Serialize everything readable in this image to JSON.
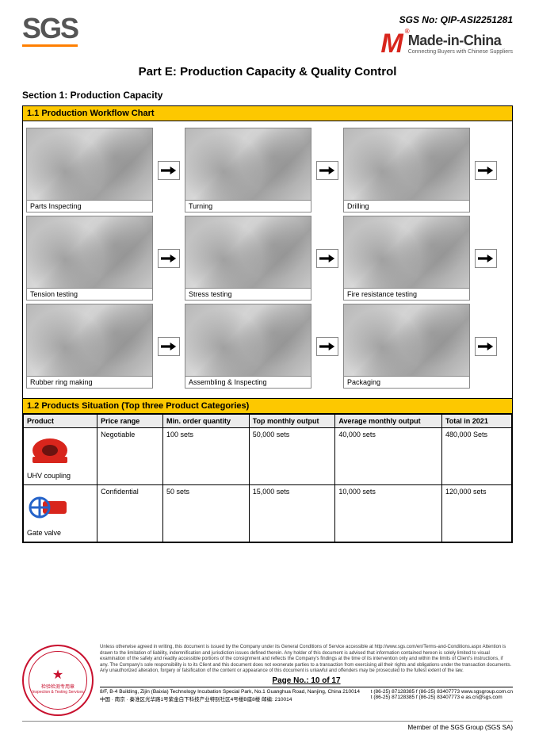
{
  "header": {
    "sgs_no_label": "SGS No: QIP-ASI2251281",
    "sgs_logo_text": "SGS",
    "mic_main": "Made-in-China",
    "mic_sub": "Connecting Buyers with Chinese Suppliers",
    "mic_m": "M"
  },
  "titles": {
    "part": "Part E: Production Capacity & Quality Control",
    "section": "Section 1: Production Capacity",
    "sub11": "1.1 Production Workflow Chart",
    "sub12": "1.2 Products Situation (Top three Product Categories)"
  },
  "workflow": {
    "rows": [
      [
        "Parts Inspecting",
        "Turning",
        "Drilling"
      ],
      [
        "Tension testing",
        "Stress testing",
        "Fire resistance testing"
      ],
      [
        "Rubber ring making",
        "Assembling & Inspecting",
        "Packaging"
      ]
    ]
  },
  "products_table": {
    "headers": [
      "Product",
      "Price range",
      "Min. order quantity",
      "Top monthly output",
      "Average monthly output",
      "Total in 2021"
    ],
    "rows": [
      {
        "name": "UHV coupling",
        "price": "Negotiable",
        "min": "100 sets",
        "top": "50,000 sets",
        "avg": "40,000 sets",
        "total": "480,000 Sets",
        "color": "#d8251c"
      },
      {
        "name": "Gate valve",
        "price": "Confidential",
        "min": "50 sets",
        "top": "15,000 sets",
        "avg": "10,000 sets",
        "total": "120,000 sets",
        "color": "#2563c9"
      }
    ]
  },
  "footer": {
    "disclaimer": "Unless otherwise agreed in writing, this document is issued by the Company under its General Conditions of Service accessible at http://www.sgs.com/en/Terms-and-Conditions.aspx Attention is drawn to the limitation of liability, indemnification and jurisdiction issues defined therein. Any holder of this document is advised that information contained hereon is solely limited to visual examination of the safely and readily accessible portions of the consignment and reflects the Company's findings at the time of its intervention only and within the limits of Client's instructions, if any. The Company's sole responsibility is to its Client and this document does not exonerate parties to a transaction from exercising all their rights and obligations under the transaction documents. Any unauthorized alteration, forgery or falsification of the content or appearance of this document is unlawful and offenders may be prosecuted to the fullest extent of the law.",
    "page_no": "Page No.:  10  of  17",
    "addr_left_1": "8/F, B-4 Building, Zijin (Baixia) Technology Incubation Special Park, No.1 Guanghua Road, Nanjing, China  210014",
    "addr_left_2": "中国 · 南京 · 秦淮区光华路1号紫金白下科技产业特别社区4号楼B座8楼  邮编: 210014",
    "addr_right_1": "t  (86-25) 87128385    f  (86-25) 83407773    www.sgsgroup.com.cn",
    "addr_right_2": "t  (86-25) 87128385    f  (86-25) 83407773    e  as.cn@sgs.com",
    "member": "Member of the SGS Group (SGS SA)",
    "stamp_line1": "检验检测专用章",
    "stamp_line2": "Inspection & Testing Services"
  },
  "colors": {
    "yellow_header": "#fdc800",
    "orange_rule": "#ff7f00",
    "mic_red": "#d8251c",
    "stamp_red": "#c8102e"
  }
}
